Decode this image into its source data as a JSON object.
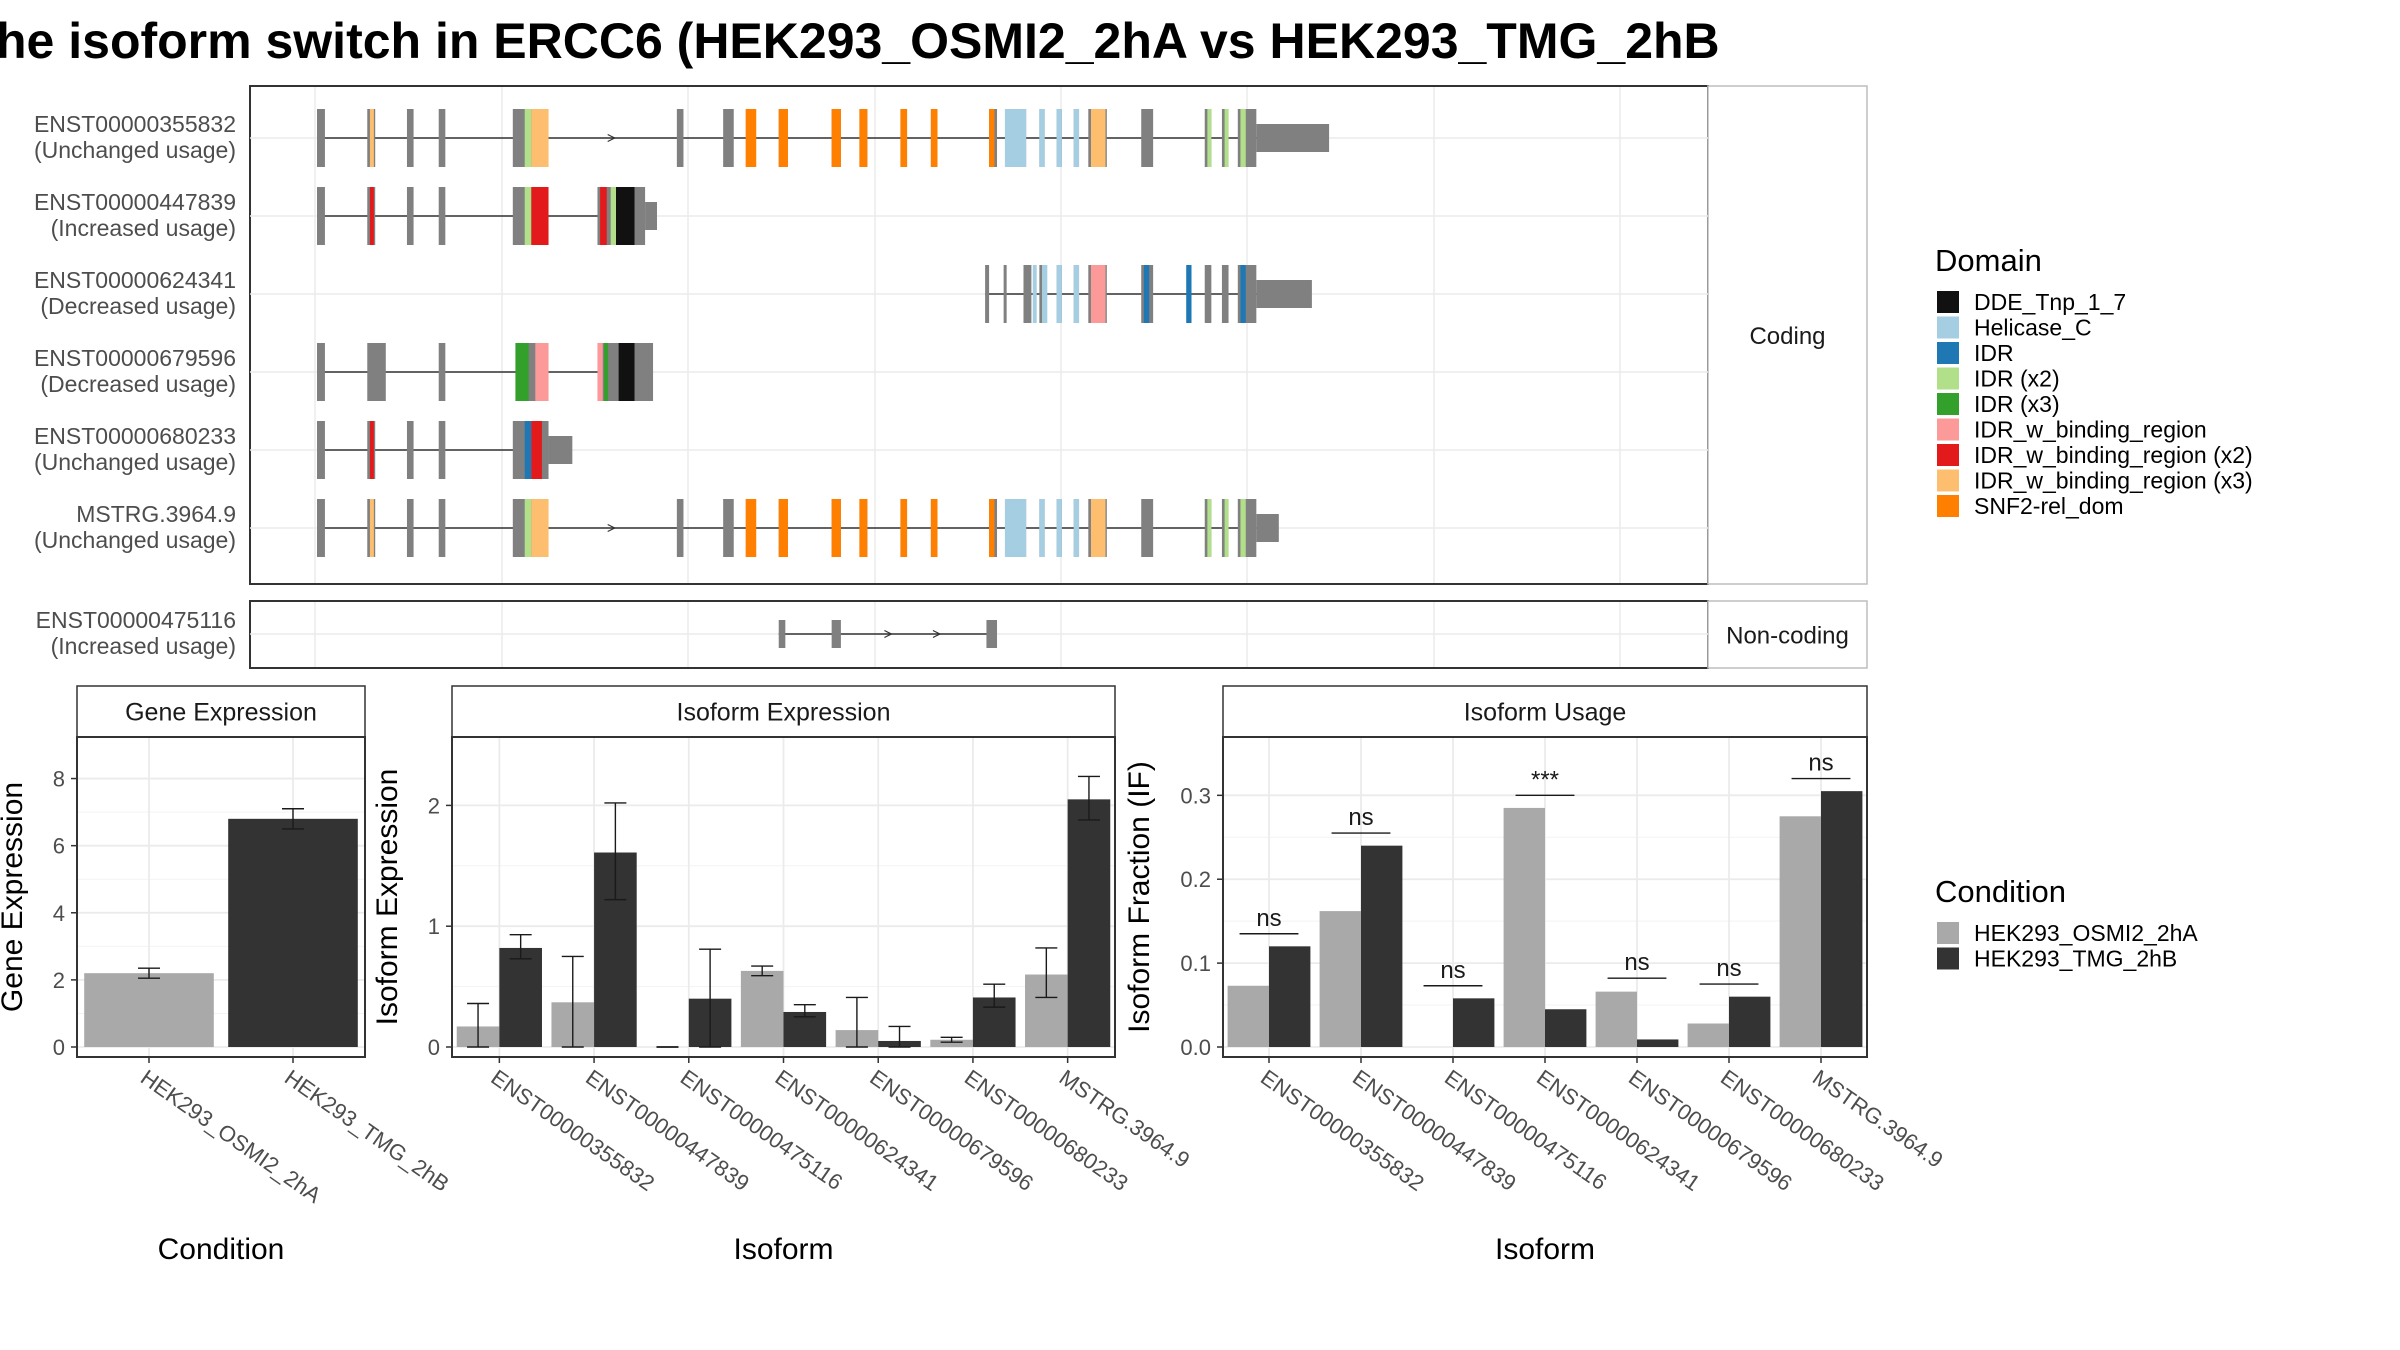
{
  "title": "he isoform switch in ERCC6 (HEK293_OSMI2_2hA vs HEK293_TMG_2hB",
  "colors": {
    "exon_gray": "#808080",
    "osmi": "#A9A9A9",
    "tmg": "#333333",
    "grid": "#EBEBEB",
    "strip_bg": "#FFFFFF",
    "panel_border": "#333333"
  },
  "structure": {
    "facets": [
      "Coding",
      "Non-coding"
    ],
    "legend_title": "Domain",
    "domains": [
      {
        "name": "DDE_Tnp_1_7",
        "color": "#111111"
      },
      {
        "name": "Helicase_C",
        "color": "#A6CEE3"
      },
      {
        "name": "IDR",
        "color": "#1F78B4"
      },
      {
        "name": "IDR (x2)",
        "color": "#B2DF8A"
      },
      {
        "name": "IDR (x3)",
        "color": "#33A02C"
      },
      {
        "name": "IDR_w_binding_region",
        "color": "#FB9A99"
      },
      {
        "name": "IDR_w_binding_region (x2)",
        "color": "#E31A1C"
      },
      {
        "name": "IDR_w_binding_region (x3)",
        "color": "#FDBF6F"
      },
      {
        "name": "SNF2-rel_dom",
        "color": "#FF7F00"
      }
    ],
    "transcripts": [
      {
        "id": "ENST00000355832",
        "status": "(Unchanged usage)",
        "facet": "Coding",
        "intron": [
          0.0,
          0.735
        ],
        "exons": [
          [
            0.0,
            0.006,
            "c"
          ],
          [
            0.038,
            0.044,
            "c"
          ],
          [
            0.068,
            0.073,
            "c"
          ],
          [
            0.092,
            0.097,
            "c"
          ],
          [
            0.148,
            0.175,
            "c"
          ],
          [
            0.272,
            0.277,
            "c"
          ],
          [
            0.307,
            0.315,
            "c"
          ],
          [
            0.349,
            0.354,
            "c"
          ],
          [
            0.389,
            0.396,
            "c"
          ],
          [
            0.41,
            0.416,
            "c"
          ],
          [
            0.441,
            0.446,
            "c"
          ],
          [
            0.464,
            0.469,
            "c"
          ],
          [
            0.508,
            0.514,
            "c"
          ],
          [
            0.52,
            0.536,
            "c"
          ],
          [
            0.546,
            0.55,
            "c"
          ],
          [
            0.559,
            0.563,
            "c"
          ],
          [
            0.572,
            0.576,
            "c"
          ],
          [
            0.583,
            0.597,
            "c"
          ],
          [
            0.623,
            0.632,
            "c"
          ],
          [
            0.671,
            0.676,
            "c"
          ],
          [
            0.684,
            0.689,
            "c"
          ],
          [
            0.696,
            0.71,
            "c"
          ],
          [
            0.71,
            0.765,
            "n"
          ]
        ],
        "doms": [
          [
            0.04,
            0.043,
            7
          ],
          [
            0.157,
            0.162,
            3
          ],
          [
            0.162,
            0.175,
            7
          ],
          [
            0.324,
            0.332,
            8
          ],
          [
            0.349,
            0.356,
            8
          ],
          [
            0.389,
            0.396,
            8
          ],
          [
            0.41,
            0.416,
            8
          ],
          [
            0.441,
            0.446,
            8
          ],
          [
            0.464,
            0.469,
            8
          ],
          [
            0.508,
            0.512,
            8
          ],
          [
            0.52,
            0.536,
            1
          ],
          [
            0.546,
            0.55,
            1
          ],
          [
            0.559,
            0.563,
            1
          ],
          [
            0.572,
            0.576,
            1
          ],
          [
            0.585,
            0.596,
            7
          ],
          [
            0.673,
            0.676,
            3
          ],
          [
            0.686,
            0.689,
            3
          ],
          [
            0.698,
            0.702,
            3
          ]
        ]
      },
      {
        "id": "ENST00000447839",
        "status": "(Increased usage)",
        "facet": "Coding",
        "intron": [
          0.0,
          0.248
        ],
        "exons": [
          [
            0.0,
            0.006,
            "c"
          ],
          [
            0.038,
            0.044,
            "c"
          ],
          [
            0.068,
            0.073,
            "c"
          ],
          [
            0.092,
            0.097,
            "c"
          ],
          [
            0.148,
            0.175,
            "c"
          ],
          [
            0.212,
            0.248,
            "c"
          ],
          [
            0.248,
            0.257,
            "n"
          ]
        ],
        "doms": [
          [
            0.04,
            0.043,
            6
          ],
          [
            0.157,
            0.162,
            3
          ],
          [
            0.162,
            0.175,
            6
          ],
          [
            0.214,
            0.219,
            6
          ],
          [
            0.222,
            0.226,
            3
          ],
          [
            0.226,
            0.24,
            0
          ]
        ]
      },
      {
        "id": "ENST00000624341",
        "status": "(Decreased usage)",
        "facet": "Coding",
        "intron": [
          0.505,
          0.725
        ],
        "exons": [
          [
            0.505,
            0.508,
            "c"
          ],
          [
            0.519,
            0.521,
            "c"
          ],
          [
            0.534,
            0.54,
            "c"
          ],
          [
            0.546,
            0.55,
            "c"
          ],
          [
            0.559,
            0.563,
            "c"
          ],
          [
            0.572,
            0.576,
            "c"
          ],
          [
            0.583,
            0.597,
            "c"
          ],
          [
            0.623,
            0.632,
            "c"
          ],
          [
            0.671,
            0.676,
            "c"
          ],
          [
            0.684,
            0.689,
            "c"
          ],
          [
            0.696,
            0.71,
            "c"
          ],
          [
            0.71,
            0.752,
            "n"
          ]
        ],
        "doms": [
          [
            0.541,
            0.544,
            1
          ],
          [
            0.548,
            0.552,
            1
          ],
          [
            0.559,
            0.563,
            1
          ],
          [
            0.572,
            0.576,
            1
          ],
          [
            0.585,
            0.596,
            5
          ],
          [
            0.625,
            0.629,
            2
          ],
          [
            0.657,
            0.661,
            2
          ],
          [
            0.698,
            0.702,
            2
          ]
        ]
      },
      {
        "id": "ENST00000679596",
        "status": "(Decreased usage)",
        "facet": "Coding",
        "intron": [
          0.0,
          0.254
        ],
        "exons": [
          [
            0.0,
            0.006,
            "c"
          ],
          [
            0.038,
            0.052,
            "c"
          ],
          [
            0.092,
            0.097,
            "c"
          ],
          [
            0.15,
            0.175,
            "c"
          ],
          [
            0.212,
            0.254,
            "c"
          ]
        ],
        "doms": [
          [
            0.15,
            0.16,
            4
          ],
          [
            0.165,
            0.175,
            5
          ],
          [
            0.212,
            0.216,
            5
          ],
          [
            0.217,
            0.22,
            4
          ],
          [
            0.228,
            0.24,
            0
          ]
        ]
      },
      {
        "id": "ENST00000680233",
        "status": "(Unchanged usage)",
        "facet": "Coding",
        "intron": [
          0.0,
          0.175
        ],
        "exons": [
          [
            0.0,
            0.006,
            "c"
          ],
          [
            0.038,
            0.044,
            "c"
          ],
          [
            0.068,
            0.073,
            "c"
          ],
          [
            0.092,
            0.097,
            "c"
          ],
          [
            0.148,
            0.175,
            "c"
          ],
          [
            0.175,
            0.193,
            "n"
          ]
        ],
        "doms": [
          [
            0.04,
            0.043,
            6
          ],
          [
            0.157,
            0.162,
            2
          ],
          [
            0.162,
            0.17,
            6
          ]
        ]
      },
      {
        "id": "MSTRG.3964.9",
        "status": "(Unchanged usage)",
        "facet": "Coding",
        "intron": [
          0.0,
          0.71
        ],
        "exons": [
          [
            0.0,
            0.006,
            "c"
          ],
          [
            0.038,
            0.044,
            "c"
          ],
          [
            0.068,
            0.073,
            "c"
          ],
          [
            0.092,
            0.097,
            "c"
          ],
          [
            0.148,
            0.175,
            "c"
          ],
          [
            0.272,
            0.277,
            "c"
          ],
          [
            0.307,
            0.315,
            "c"
          ],
          [
            0.349,
            0.354,
            "c"
          ],
          [
            0.389,
            0.396,
            "c"
          ],
          [
            0.41,
            0.416,
            "c"
          ],
          [
            0.441,
            0.446,
            "c"
          ],
          [
            0.464,
            0.469,
            "c"
          ],
          [
            0.508,
            0.514,
            "c"
          ],
          [
            0.52,
            0.536,
            "c"
          ],
          [
            0.546,
            0.55,
            "c"
          ],
          [
            0.559,
            0.563,
            "c"
          ],
          [
            0.572,
            0.576,
            "c"
          ],
          [
            0.583,
            0.597,
            "c"
          ],
          [
            0.623,
            0.632,
            "c"
          ],
          [
            0.671,
            0.676,
            "c"
          ],
          [
            0.684,
            0.689,
            "c"
          ],
          [
            0.696,
            0.71,
            "c"
          ],
          [
            0.71,
            0.727,
            "n"
          ]
        ],
        "doms": [
          [
            0.04,
            0.043,
            7
          ],
          [
            0.157,
            0.162,
            3
          ],
          [
            0.162,
            0.175,
            7
          ],
          [
            0.324,
            0.332,
            8
          ],
          [
            0.349,
            0.356,
            8
          ],
          [
            0.389,
            0.396,
            8
          ],
          [
            0.41,
            0.416,
            8
          ],
          [
            0.441,
            0.446,
            8
          ],
          [
            0.464,
            0.469,
            8
          ],
          [
            0.508,
            0.512,
            8
          ],
          [
            0.52,
            0.536,
            1
          ],
          [
            0.546,
            0.55,
            1
          ],
          [
            0.559,
            0.563,
            1
          ],
          [
            0.572,
            0.576,
            1
          ],
          [
            0.585,
            0.596,
            7
          ],
          [
            0.673,
            0.676,
            3
          ],
          [
            0.686,
            0.689,
            3
          ],
          [
            0.698,
            0.702,
            3
          ]
        ]
      },
      {
        "id": "ENST00000475116",
        "status": "(Increased usage)",
        "facet": "Non-coding",
        "intron": [
          0.349,
          0.51
        ],
        "exons": [
          [
            0.349,
            0.354,
            "n"
          ],
          [
            0.389,
            0.396,
            "n"
          ],
          [
            0.506,
            0.514,
            "n"
          ]
        ],
        "doms": []
      }
    ]
  },
  "chart_data": [
    {
      "type": "bar",
      "title": "Gene Expression",
      "xlabel": "Condition",
      "ylabel": "Gene Expression",
      "ylim": [
        0,
        9
      ],
      "yticks": [
        0,
        2,
        4,
        6,
        8
      ],
      "categories": [
        "HEK293_OSMI2_2hA",
        "HEK293_TMG_2hB"
      ],
      "values": [
        2.2,
        6.8
      ],
      "error": [
        [
          2.05,
          2.35
        ],
        [
          6.5,
          7.1
        ]
      ]
    },
    {
      "type": "bar",
      "title": "Isoform Expression",
      "xlabel": "Isoform",
      "ylabel": "Isoform Expression",
      "ylim": [
        0,
        2.5
      ],
      "yticks": [
        0,
        1,
        2
      ],
      "categories": [
        "ENST00000355832",
        "ENST00000447839",
        "ENST00000475116",
        "ENST00000624341",
        "ENST00000679596",
        "ENST00000680233",
        "MSTRG.3964.9"
      ],
      "series": [
        {
          "name": "HEK293_OSMI2_2hA",
          "values": [
            0.17,
            0.37,
            0.0,
            0.63,
            0.14,
            0.06,
            0.6
          ],
          "error": [
            [
              0.0,
              0.36
            ],
            [
              0.0,
              0.75
            ],
            [
              0.0,
              0.0
            ],
            [
              0.59,
              0.67
            ],
            [
              0.0,
              0.41
            ],
            [
              0.04,
              0.08
            ],
            [
              0.41,
              0.82
            ]
          ]
        },
        {
          "name": "HEK293_TMG_2hB",
          "values": [
            0.82,
            1.61,
            0.4,
            0.29,
            0.05,
            0.41,
            2.05
          ],
          "error": [
            [
              0.73,
              0.93
            ],
            [
              1.22,
              2.02
            ],
            [
              0.0,
              0.81
            ],
            [
              0.25,
              0.35
            ],
            [
              0.0,
              0.17
            ],
            [
              0.33,
              0.52
            ],
            [
              1.88,
              2.24
            ]
          ]
        }
      ]
    },
    {
      "type": "bar",
      "title": "Isoform Usage",
      "xlabel": "Isoform",
      "ylabel": "Isoform Fraction (IF)",
      "ylim": [
        0,
        0.36
      ],
      "yticks": [
        0.0,
        0.1,
        0.2,
        0.3
      ],
      "ytick_labels": [
        "0.0",
        "0.1",
        "0.2",
        "0.3"
      ],
      "categories": [
        "ENST00000355832",
        "ENST00000447839",
        "ENST00000475116",
        "ENST00000624341",
        "ENST00000679596",
        "ENST00000680233",
        "MSTRG.3964.9"
      ],
      "series": [
        {
          "name": "HEK293_OSMI2_2hA",
          "values": [
            0.073,
            0.162,
            0.0,
            0.285,
            0.066,
            0.028,
            0.275
          ]
        },
        {
          "name": "HEK293_TMG_2hB",
          "values": [
            0.12,
            0.24,
            0.058,
            0.045,
            0.009,
            0.06,
            0.305
          ]
        }
      ],
      "significance": [
        "ns",
        "ns",
        "ns",
        "***",
        "ns",
        "ns",
        "ns"
      ],
      "sig_y": [
        0.135,
        0.255,
        0.073,
        0.3,
        0.082,
        0.075,
        0.32
      ]
    }
  ],
  "condition_legend": {
    "title": "Condition",
    "items": [
      {
        "name": "HEK293_OSMI2_2hA",
        "color": "#A9A9A9"
      },
      {
        "name": "HEK293_TMG_2hB",
        "color": "#333333"
      }
    ]
  }
}
